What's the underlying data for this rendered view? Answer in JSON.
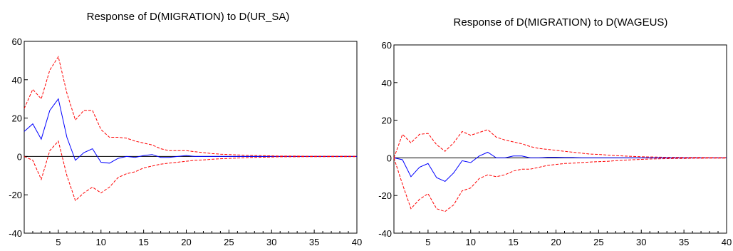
{
  "chart_data": [
    {
      "type": "line",
      "title": "Response of D(MIGRATION) to D(UR_SA)",
      "xlabel": "",
      "ylabel": "",
      "xlim": [
        1,
        40
      ],
      "ylim": [
        -40,
        60
      ],
      "x_ticks": [
        5,
        10,
        15,
        20,
        25,
        30,
        35,
        40
      ],
      "y_ticks": [
        -40,
        -20,
        0,
        20,
        40,
        60
      ],
      "zero_line": true,
      "legend": "none",
      "x": [
        1,
        2,
        3,
        4,
        5,
        6,
        7,
        8,
        9,
        10,
        11,
        12,
        13,
        14,
        15,
        16,
        17,
        18,
        19,
        20,
        21,
        22,
        23,
        24,
        25,
        26,
        27,
        28,
        29,
        30,
        31,
        32,
        33,
        34,
        35,
        36,
        37,
        38,
        39,
        40
      ],
      "series": [
        {
          "role": "response",
          "color": "#0000ff",
          "style": "solid",
          "values": [
            13,
            17,
            9,
            24,
            30,
            10,
            -2,
            2,
            4,
            -3,
            -3.5,
            -1,
            0,
            -0.5,
            0.5,
            1,
            -0.5,
            -0.5,
            0,
            0.5,
            0,
            0,
            0,
            0,
            0,
            0,
            0,
            0,
            0,
            0,
            0,
            0,
            0,
            0,
            0,
            0,
            0,
            0,
            0,
            0
          ]
        },
        {
          "role": "upper",
          "color": "#ff0000",
          "style": "dashed",
          "values": [
            25,
            35,
            30,
            45,
            52,
            33,
            19,
            24,
            24,
            14,
            10,
            10,
            9.5,
            8,
            7,
            6,
            4,
            3,
            3,
            3,
            2.5,
            2,
            1.5,
            1.2,
            1,
            0.8,
            0.6,
            0.5,
            0.4,
            0.3,
            0.2,
            0.2,
            0.2,
            0.1,
            0.1,
            0.1,
            0.1,
            0.1,
            0.1,
            0.1
          ]
        },
        {
          "role": "lower",
          "color": "#ff0000",
          "style": "dashed",
          "values": [
            0,
            -2,
            -12,
            3,
            8,
            -10,
            -23,
            -19,
            -16,
            -19,
            -16,
            -11,
            -9,
            -8,
            -6,
            -5,
            -4,
            -3.5,
            -3,
            -2.5,
            -2,
            -1.8,
            -1.5,
            -1.2,
            -1,
            -0.8,
            -0.6,
            -0.5,
            -0.4,
            -0.3,
            -0.2,
            -0.2,
            -0.2,
            -0.1,
            -0.1,
            -0.1,
            -0.1,
            -0.1,
            -0.1,
            -0.1
          ]
        }
      ]
    },
    {
      "type": "line",
      "title": "Response of D(MIGRATION) to D(WAGEUS)",
      "xlabel": "",
      "ylabel": "",
      "xlim": [
        1,
        40
      ],
      "ylim": [
        -40,
        60
      ],
      "x_ticks": [
        5,
        10,
        15,
        20,
        25,
        30,
        35,
        40
      ],
      "y_ticks": [
        -40,
        -20,
        0,
        20,
        40,
        60
      ],
      "zero_line": true,
      "legend": "none",
      "x": [
        1,
        2,
        3,
        4,
        5,
        6,
        7,
        8,
        9,
        10,
        11,
        12,
        13,
        14,
        15,
        16,
        17,
        18,
        19,
        20,
        21,
        22,
        23,
        24,
        25,
        26,
        27,
        28,
        29,
        30,
        31,
        32,
        33,
        34,
        35,
        36,
        37,
        38,
        39,
        40
      ],
      "series": [
        {
          "role": "response",
          "color": "#0000ff",
          "style": "solid",
          "values": [
            0,
            -1,
            -10,
            -5,
            -3,
            -10.5,
            -12.5,
            -8,
            -1.5,
            -2.5,
            1,
            3,
            0,
            0,
            1,
            1,
            0,
            0,
            0.3,
            0.3,
            0.2,
            0.2,
            0,
            0,
            0,
            0,
            0,
            0,
            0,
            0,
            0,
            0,
            0,
            0,
            0,
            0,
            0,
            0,
            0,
            0
          ]
        },
        {
          "role": "upper",
          "color": "#ff0000",
          "style": "dashed",
          "values": [
            0,
            12.5,
            8,
            12.5,
            13,
            7,
            3.5,
            8,
            14,
            12,
            13.5,
            15,
            11,
            9.5,
            8.5,
            7.5,
            6,
            5,
            4.5,
            4,
            3.5,
            3,
            2.5,
            2,
            1.8,
            1.5,
            1.2,
            1,
            0.8,
            0.6,
            0.5,
            0.4,
            0.3,
            0.3,
            0.2,
            0.2,
            0.2,
            0.1,
            0.1,
            0.1
          ]
        },
        {
          "role": "lower",
          "color": "#ff0000",
          "style": "dashed",
          "values": [
            0,
            -14,
            -27,
            -22,
            -19,
            -27,
            -28.5,
            -25,
            -17.5,
            -16,
            -11,
            -9,
            -10,
            -9,
            -7,
            -6,
            -6,
            -5,
            -4,
            -3.5,
            -3,
            -2.8,
            -2.5,
            -2.2,
            -2,
            -1.8,
            -1.5,
            -1.2,
            -1,
            -0.8,
            -0.6,
            -0.5,
            -0.4,
            -0.3,
            -0.3,
            -0.2,
            -0.2,
            -0.1,
            -0.1,
            -0.1
          ]
        }
      ]
    }
  ]
}
